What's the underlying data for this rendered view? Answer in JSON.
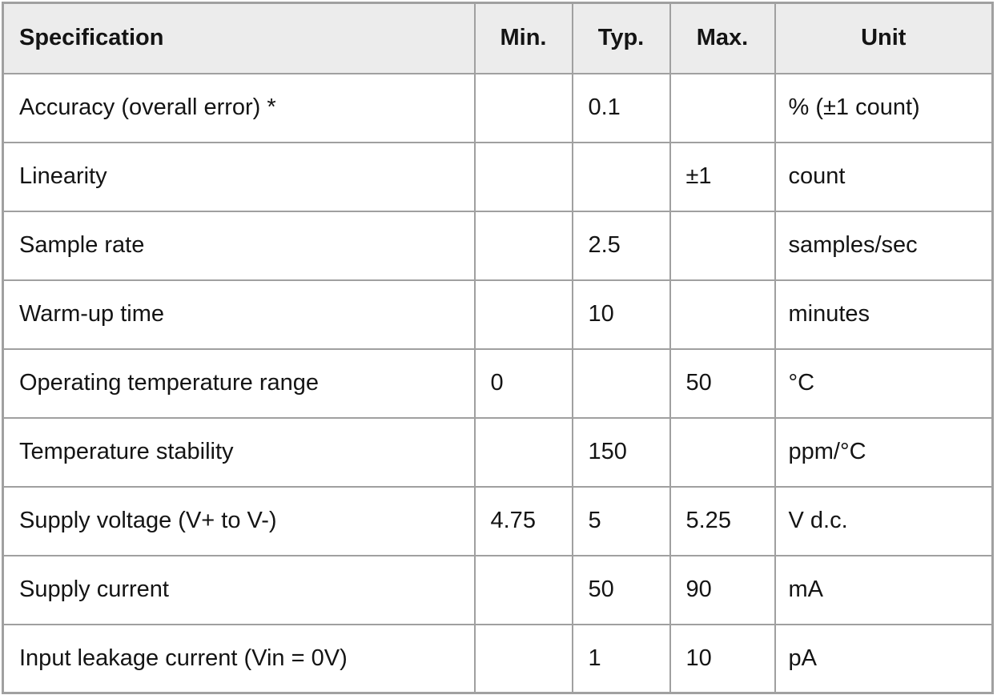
{
  "table": {
    "columns": [
      {
        "key": "spec",
        "label": "Specification"
      },
      {
        "key": "min",
        "label": "Min."
      },
      {
        "key": "typ",
        "label": "Typ."
      },
      {
        "key": "max",
        "label": "Max."
      },
      {
        "key": "unit",
        "label": "Unit"
      }
    ],
    "rows": [
      {
        "spec": "Accuracy (overall error) *",
        "min": "",
        "typ": "0.1",
        "max": "",
        "unit": "% (±1 count)"
      },
      {
        "spec": "Linearity",
        "min": "",
        "typ": "",
        "max": "±1",
        "unit": "count"
      },
      {
        "spec": "Sample rate",
        "min": "",
        "typ": "2.5",
        "max": "",
        "unit": "samples/sec"
      },
      {
        "spec": "Warm-up time",
        "min": "",
        "typ": "10",
        "max": "",
        "unit": "minutes"
      },
      {
        "spec": "Operating temperature range",
        "min": "0",
        "typ": "",
        "max": "50",
        "unit": "°C"
      },
      {
        "spec": "Temperature stability",
        "min": "",
        "typ": "150",
        "max": "",
        "unit": "ppm/°C"
      },
      {
        "spec": "Supply voltage (V+ to V-)",
        "min": "4.75",
        "typ": "5",
        "max": "5.25",
        "unit": "V d.c."
      },
      {
        "spec": "Supply current",
        "min": "",
        "typ": "50",
        "max": "90",
        "unit": "mA"
      },
      {
        "spec": "Input leakage current (Vin = 0V)",
        "min": "",
        "typ": "1",
        "max": "10",
        "unit": "pA"
      }
    ],
    "colors": {
      "border": "#a0a0a0",
      "header_bg": "#ececec",
      "row_bg": "#ffffff",
      "text": "#141414"
    }
  }
}
